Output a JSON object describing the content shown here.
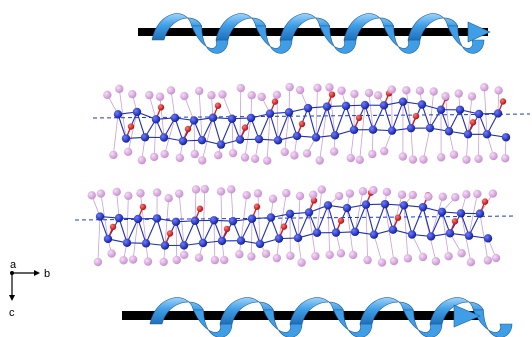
{
  "figure": {
    "axes": {
      "a_label": "a",
      "b_label": "b",
      "c_label": "c"
    },
    "colors": {
      "background": "#ffffff",
      "helix_dark": "#1f6fb8",
      "helix_mid": "#3f9ee6",
      "helix_light": "#9fd3fb",
      "rod": "#000000",
      "blue_atom": "#1428c8",
      "red_atom": "#e01818",
      "pink_atom": "#d8a6dc",
      "blue_bond": "#1e2fb0",
      "pink_bond": "#caa0d6",
      "dashed_bond": "#1a3ad0"
    },
    "elements": {
      "helix_count": 2,
      "chain_count": 2,
      "atom_types": [
        "blue",
        "red",
        "pink"
      ]
    }
  }
}
